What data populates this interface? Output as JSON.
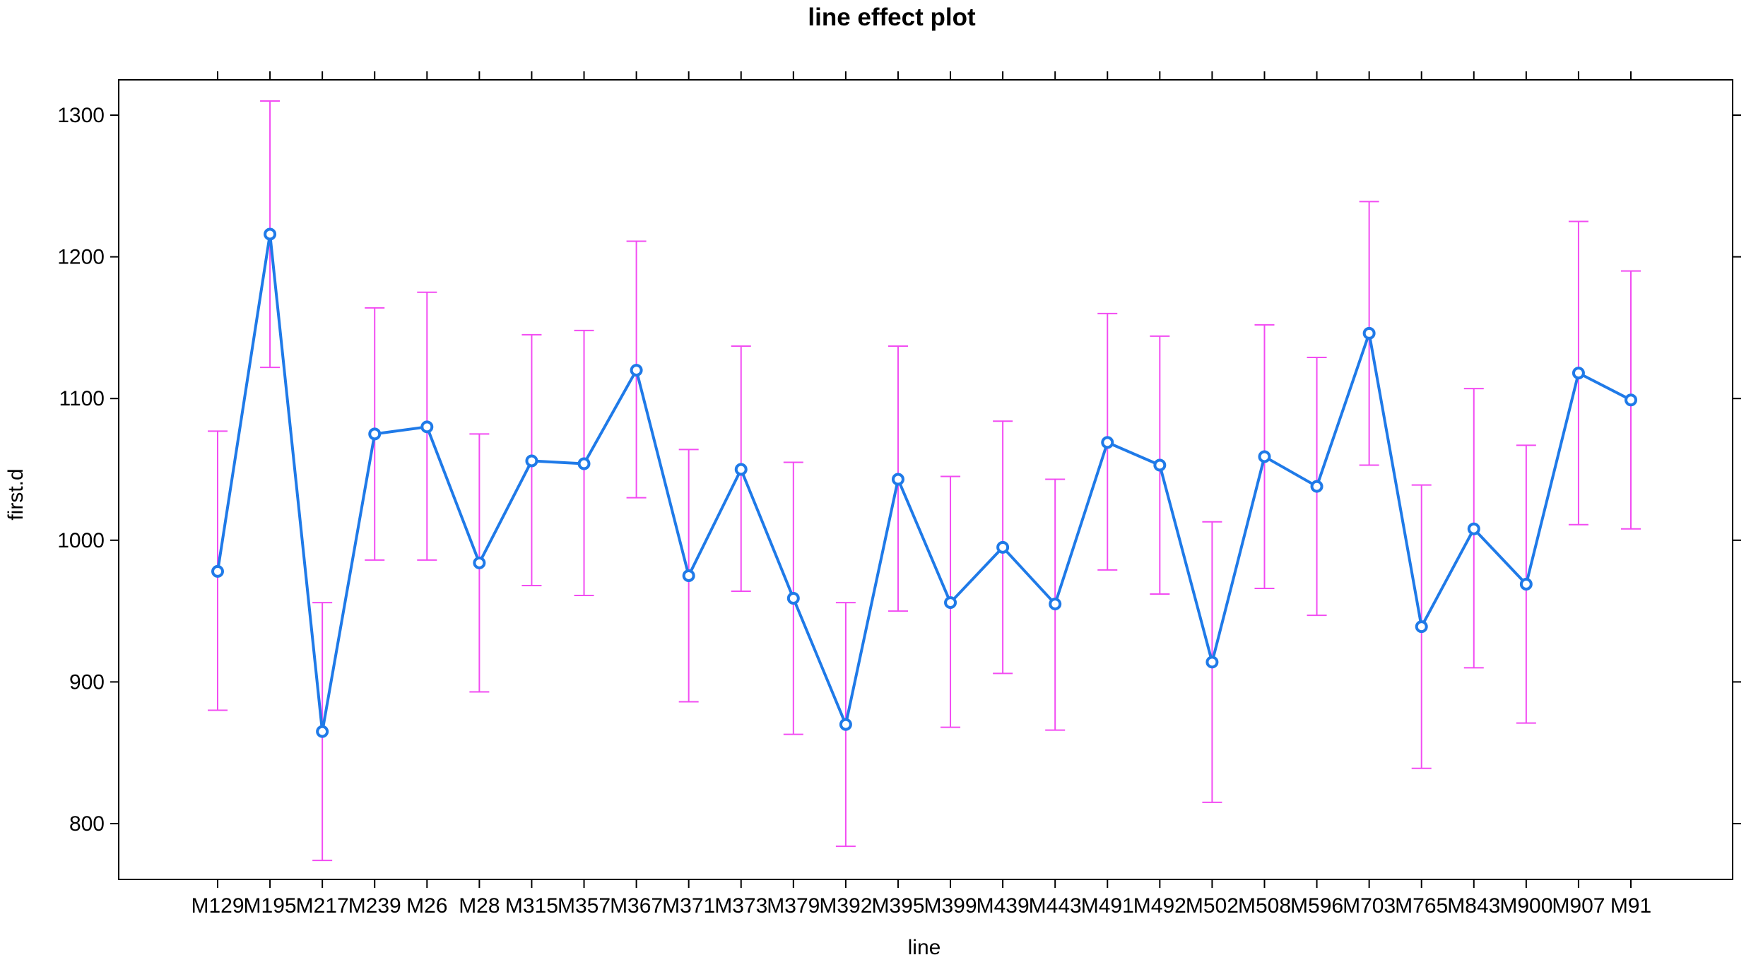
{
  "chart_data": {
    "type": "line",
    "title": "line effect plot",
    "xlabel": "line",
    "ylabel": "first.d",
    "ylim": [
      776,
      1324
    ],
    "yticks": [
      800,
      900,
      1000,
      1100,
      1200,
      1300
    ],
    "grid": false,
    "categories": [
      "M129",
      "M195",
      "M217",
      "M239",
      "M26",
      "M28",
      "M315",
      "M357",
      "M367",
      "M371",
      "M373",
      "M379",
      "M392",
      "M395",
      "M399",
      "M439",
      "M443",
      "M491",
      "M492",
      "M502",
      "M508",
      "M596",
      "M703",
      "M765",
      "M843",
      "M900",
      "M907",
      "M91"
    ],
    "series": [
      {
        "values": [
          978,
          1216,
          865,
          1075,
          1080,
          984,
          1056,
          1054,
          1120,
          975,
          1050,
          959,
          870,
          1043,
          956,
          995,
          955,
          1069,
          1053,
          914,
          1059,
          1038,
          1146,
          939,
          1008,
          969,
          1118,
          1099
        ],
        "lower": [
          880,
          1122,
          774,
          986,
          986,
          893,
          968,
          961,
          1030,
          886,
          964,
          863,
          784,
          950,
          868,
          906,
          866,
          979,
          962,
          815,
          966,
          947,
          1053,
          839,
          910,
          871,
          1011,
          1008
        ],
        "upper": [
          1077,
          1310,
          956,
          1164,
          1175,
          1075,
          1145,
          1148,
          1211,
          1064,
          1137,
          1055,
          956,
          1137,
          1045,
          1084,
          1043,
          1160,
          1144,
          1013,
          1152,
          1129,
          1239,
          1039,
          1107,
          1067,
          1225,
          1190
        ]
      }
    ],
    "colors": {
      "line": "#1f7ae8",
      "error_bars": "#f24cf2",
      "frame": "#000000"
    }
  }
}
